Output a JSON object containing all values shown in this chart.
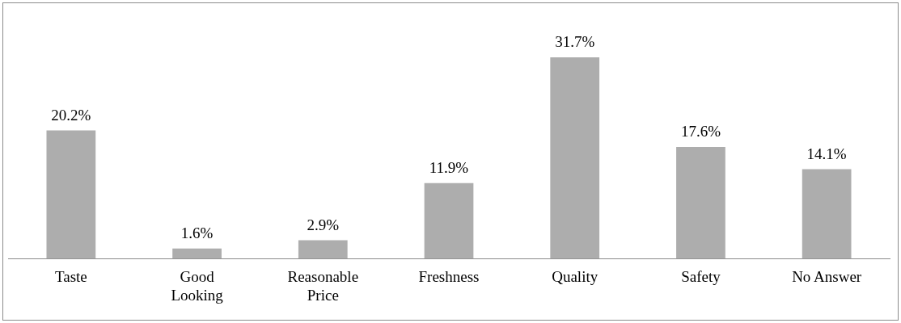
{
  "chart_data": {
    "type": "bar",
    "categories": [
      "Taste",
      "Good Looking",
      "Reasonable Price",
      "Freshness",
      "Quality",
      "Safety",
      "No Answer"
    ],
    "values": [
      20.2,
      1.6,
      2.9,
      11.9,
      31.7,
      17.6,
      14.1
    ],
    "value_labels": [
      "20.2%",
      "1.6%",
      "2.9%",
      "11.9%",
      "31.7%",
      "17.6%",
      "14.1%"
    ],
    "color": "#adadad"
  }
}
